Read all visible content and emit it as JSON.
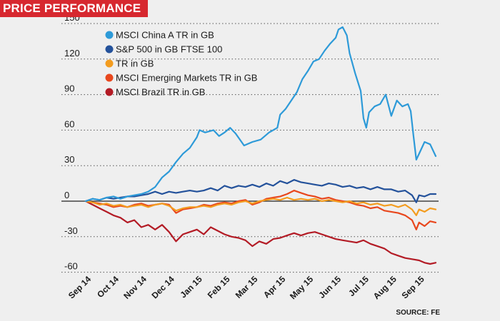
{
  "header": {
    "title": "PRICE PERFORMANCE"
  },
  "source_note": "SOURCE: FE",
  "chart_data": {
    "type": "line",
    "title": "PRICE PERFORMANCE",
    "ylim": [
      -65,
      150
    ],
    "yticks": [
      150,
      120,
      90,
      60,
      30,
      0,
      -30,
      -60
    ],
    "ytick_labels": [
      "150",
      "120",
      "90",
      "60",
      "30",
      "0",
      "-30",
      "-60"
    ],
    "grid": "horizontal-dotted",
    "legend_position": "top-left",
    "x_labels": [
      "Sep 14",
      "Oct 14",
      "Nov 14",
      "Dec 14",
      "Jan 15",
      "Feb 15",
      "Mar 15",
      "Apr 15",
      "May 15",
      "Jun 15",
      "Jul 15",
      "Aug 15",
      "Sep 15"
    ],
    "x_label_positions": [
      0,
      1,
      2,
      3,
      4,
      5,
      6,
      7,
      8,
      9,
      10,
      11,
      12
    ],
    "series": [
      {
        "name": "MSCI China A TR in GB",
        "color": "#2d9ad8",
        "points": [
          [
            0,
            0
          ],
          [
            0.25,
            2
          ],
          [
            0.5,
            1
          ],
          [
            0.75,
            3
          ],
          [
            1,
            4
          ],
          [
            1.25,
            2
          ],
          [
            1.5,
            4
          ],
          [
            1.75,
            5
          ],
          [
            2,
            6
          ],
          [
            2.25,
            8
          ],
          [
            2.5,
            12
          ],
          [
            2.75,
            20
          ],
          [
            3,
            25
          ],
          [
            3.25,
            33
          ],
          [
            3.5,
            40
          ],
          [
            3.75,
            45
          ],
          [
            4,
            54
          ],
          [
            4.1,
            60
          ],
          [
            4.3,
            58
          ],
          [
            4.6,
            60
          ],
          [
            4.8,
            55
          ],
          [
            5,
            58
          ],
          [
            5.2,
            62
          ],
          [
            5.4,
            57
          ],
          [
            5.7,
            47
          ],
          [
            6,
            50
          ],
          [
            6.3,
            52
          ],
          [
            6.6,
            58
          ],
          [
            6.9,
            62
          ],
          [
            7.0,
            73
          ],
          [
            7.2,
            78
          ],
          [
            7.4,
            85
          ],
          [
            7.6,
            92
          ],
          [
            7.8,
            103
          ],
          [
            8.0,
            110
          ],
          [
            8.2,
            118
          ],
          [
            8.4,
            120
          ],
          [
            8.6,
            127
          ],
          [
            8.8,
            133
          ],
          [
            9.0,
            138
          ],
          [
            9.1,
            145
          ],
          [
            9.25,
            147
          ],
          [
            9.4,
            140
          ],
          [
            9.5,
            125
          ],
          [
            9.7,
            108
          ],
          [
            9.9,
            93
          ],
          [
            10.0,
            70
          ],
          [
            10.1,
            62
          ],
          [
            10.2,
            75
          ],
          [
            10.4,
            80
          ],
          [
            10.6,
            82
          ],
          [
            10.8,
            90
          ],
          [
            11.0,
            72
          ],
          [
            11.2,
            85
          ],
          [
            11.4,
            80
          ],
          [
            11.6,
            82
          ],
          [
            11.7,
            76
          ],
          [
            11.8,
            55
          ],
          [
            11.9,
            35
          ],
          [
            12.0,
            40
          ],
          [
            12.2,
            50
          ],
          [
            12.4,
            48
          ],
          [
            12.6,
            38
          ]
        ]
      },
      {
        "name": "S&P 500 in GB FTSE 100",
        "color": "#24529b",
        "points": [
          [
            0,
            0
          ],
          [
            0.25,
            2
          ],
          [
            0.5,
            1
          ],
          [
            0.75,
            3
          ],
          [
            1,
            2
          ],
          [
            1.25,
            3
          ],
          [
            1.5,
            4
          ],
          [
            1.75,
            4
          ],
          [
            2,
            5
          ],
          [
            2.25,
            6
          ],
          [
            2.5,
            8
          ],
          [
            2.75,
            6
          ],
          [
            3,
            8
          ],
          [
            3.25,
            7
          ],
          [
            3.5,
            8
          ],
          [
            3.75,
            9
          ],
          [
            4,
            8
          ],
          [
            4.25,
            9
          ],
          [
            4.5,
            11
          ],
          [
            4.75,
            9
          ],
          [
            5,
            13
          ],
          [
            5.25,
            11
          ],
          [
            5.5,
            13
          ],
          [
            5.75,
            12
          ],
          [
            6,
            14
          ],
          [
            6.25,
            12
          ],
          [
            6.5,
            15
          ],
          [
            6.75,
            13
          ],
          [
            7,
            17
          ],
          [
            7.25,
            15
          ],
          [
            7.5,
            18
          ],
          [
            7.75,
            16
          ],
          [
            8,
            15
          ],
          [
            8.25,
            14
          ],
          [
            8.5,
            13
          ],
          [
            8.75,
            15
          ],
          [
            9,
            14
          ],
          [
            9.25,
            12
          ],
          [
            9.5,
            13
          ],
          [
            9.75,
            11
          ],
          [
            10,
            12
          ],
          [
            10.25,
            10
          ],
          [
            10.5,
            12
          ],
          [
            10.75,
            10
          ],
          [
            11,
            10
          ],
          [
            11.25,
            8
          ],
          [
            11.5,
            9
          ],
          [
            11.75,
            5
          ],
          [
            11.9,
            -1
          ],
          [
            12.0,
            5
          ],
          [
            12.2,
            4
          ],
          [
            12.4,
            6
          ],
          [
            12.6,
            6
          ]
        ]
      },
      {
        "name": "TR in GB",
        "color": "#f39c1f",
        "points": [
          [
            0,
            0
          ],
          [
            0.25,
            -1
          ],
          [
            0.5,
            -3
          ],
          [
            0.75,
            -2
          ],
          [
            1,
            -4
          ],
          [
            1.25,
            -3
          ],
          [
            1.5,
            -5
          ],
          [
            1.75,
            -4
          ],
          [
            2,
            -3
          ],
          [
            2.25,
            -5
          ],
          [
            2.5,
            -3
          ],
          [
            2.75,
            -2
          ],
          [
            3,
            -4
          ],
          [
            3.25,
            -8
          ],
          [
            3.5,
            -6
          ],
          [
            3.75,
            -5
          ],
          [
            4,
            -5
          ],
          [
            4.25,
            -4
          ],
          [
            4.5,
            -5
          ],
          [
            4.75,
            -3
          ],
          [
            5,
            -2
          ],
          [
            5.25,
            -3
          ],
          [
            5.5,
            -1
          ],
          [
            5.75,
            0
          ],
          [
            6,
            -2
          ],
          [
            6.25,
            0
          ],
          [
            6.5,
            1
          ],
          [
            6.75,
            2
          ],
          [
            7,
            1
          ],
          [
            7.25,
            3
          ],
          [
            7.5,
            1
          ],
          [
            7.75,
            2
          ],
          [
            8,
            1
          ],
          [
            8.25,
            2
          ],
          [
            8.5,
            0
          ],
          [
            8.75,
            1
          ],
          [
            9,
            0
          ],
          [
            9.25,
            -1
          ],
          [
            9.5,
            0
          ],
          [
            9.75,
            -2
          ],
          [
            10,
            -1
          ],
          [
            10.25,
            -3
          ],
          [
            10.5,
            -2
          ],
          [
            10.75,
            -4
          ],
          [
            11,
            -3
          ],
          [
            11.25,
            -5
          ],
          [
            11.5,
            -3
          ],
          [
            11.75,
            -7
          ],
          [
            11.9,
            -12
          ],
          [
            12.0,
            -7
          ],
          [
            12.2,
            -9
          ],
          [
            12.4,
            -6
          ],
          [
            12.6,
            -7
          ]
        ]
      },
      {
        "name": "MSCI Emerging Markets TR in GB",
        "color": "#e8471d",
        "points": [
          [
            0,
            0
          ],
          [
            0.25,
            -1
          ],
          [
            0.5,
            -2
          ],
          [
            0.75,
            -3
          ],
          [
            1,
            -5
          ],
          [
            1.25,
            -4
          ],
          [
            1.5,
            -5
          ],
          [
            1.75,
            -3
          ],
          [
            2,
            -2
          ],
          [
            2.25,
            -4
          ],
          [
            2.5,
            -3
          ],
          [
            2.75,
            -2
          ],
          [
            3,
            -3
          ],
          [
            3.25,
            -10
          ],
          [
            3.5,
            -7
          ],
          [
            3.75,
            -6
          ],
          [
            4,
            -5
          ],
          [
            4.25,
            -3
          ],
          [
            4.5,
            -4
          ],
          [
            4.75,
            -2
          ],
          [
            5,
            -1
          ],
          [
            5.25,
            -2
          ],
          [
            5.5,
            0
          ],
          [
            5.75,
            1
          ],
          [
            6,
            -3
          ],
          [
            6.25,
            -1
          ],
          [
            6.5,
            2
          ],
          [
            6.75,
            3
          ],
          [
            7,
            4
          ],
          [
            7.25,
            6
          ],
          [
            7.5,
            9
          ],
          [
            7.75,
            7
          ],
          [
            8,
            5
          ],
          [
            8.25,
            4
          ],
          [
            8.5,
            2
          ],
          [
            8.75,
            3
          ],
          [
            9,
            1
          ],
          [
            9.25,
            0
          ],
          [
            9.5,
            -1
          ],
          [
            9.75,
            -3
          ],
          [
            10,
            -4
          ],
          [
            10.25,
            -6
          ],
          [
            10.5,
            -5
          ],
          [
            10.75,
            -8
          ],
          [
            11,
            -9
          ],
          [
            11.25,
            -10
          ],
          [
            11.5,
            -12
          ],
          [
            11.75,
            -16
          ],
          [
            11.9,
            -24
          ],
          [
            12.0,
            -18
          ],
          [
            12.2,
            -21
          ],
          [
            12.4,
            -17
          ],
          [
            12.6,
            -18
          ]
        ]
      },
      {
        "name": "MSCI Brazil TR in GB",
        "color": "#b31b25",
        "points": [
          [
            0,
            0
          ],
          [
            0.25,
            -3
          ],
          [
            0.5,
            -6
          ],
          [
            0.75,
            -9
          ],
          [
            1,
            -12
          ],
          [
            1.25,
            -14
          ],
          [
            1.5,
            -18
          ],
          [
            1.75,
            -16
          ],
          [
            2,
            -22
          ],
          [
            2.25,
            -20
          ],
          [
            2.5,
            -24
          ],
          [
            2.75,
            -20
          ],
          [
            3,
            -26
          ],
          [
            3.25,
            -34
          ],
          [
            3.5,
            -28
          ],
          [
            3.75,
            -26
          ],
          [
            4,
            -24
          ],
          [
            4.25,
            -28
          ],
          [
            4.5,
            -22
          ],
          [
            4.75,
            -25
          ],
          [
            5,
            -28
          ],
          [
            5.25,
            -30
          ],
          [
            5.5,
            -31
          ],
          [
            5.75,
            -33
          ],
          [
            6,
            -38
          ],
          [
            6.25,
            -34
          ],
          [
            6.5,
            -36
          ],
          [
            6.75,
            -32
          ],
          [
            7,
            -31
          ],
          [
            7.25,
            -29
          ],
          [
            7.5,
            -27
          ],
          [
            7.75,
            -29
          ],
          [
            8,
            -27
          ],
          [
            8.25,
            -26
          ],
          [
            8.5,
            -28
          ],
          [
            8.75,
            -30
          ],
          [
            9,
            -32
          ],
          [
            9.25,
            -33
          ],
          [
            9.5,
            -34
          ],
          [
            9.75,
            -35
          ],
          [
            10,
            -33
          ],
          [
            10.25,
            -36
          ],
          [
            10.5,
            -38
          ],
          [
            10.75,
            -40
          ],
          [
            11,
            -44
          ],
          [
            11.25,
            -46
          ],
          [
            11.5,
            -48
          ],
          [
            11.75,
            -49
          ],
          [
            12.0,
            -50
          ],
          [
            12.2,
            -52
          ],
          [
            12.4,
            -53
          ],
          [
            12.6,
            -52
          ]
        ]
      }
    ]
  }
}
